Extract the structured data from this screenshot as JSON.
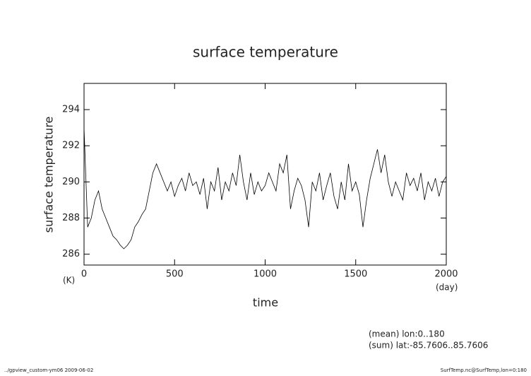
{
  "chart_data": {
    "type": "line",
    "title": "surface temperature",
    "y_label": "surface temperature",
    "y_unit": "(K)",
    "x_label": "time",
    "x_unit": "(day)",
    "notes": [
      "(mean) lon:0..180",
      "(sum) lat:-85.7606..85.7606"
    ],
    "footer_left": "../gpview_custom-ym06  2009-06-02",
    "footer_right": "SurfTemp.nc@SurfTemp,lon=0:180",
    "color": "#000000",
    "x": [
      0,
      20,
      40,
      60,
      80,
      100,
      120,
      140,
      160,
      180,
      200,
      220,
      240,
      260,
      280,
      300,
      320,
      340,
      360,
      380,
      400,
      420,
      440,
      460,
      480,
      500,
      520,
      540,
      560,
      580,
      600,
      620,
      640,
      660,
      680,
      700,
      720,
      740,
      760,
      780,
      800,
      820,
      840,
      860,
      880,
      900,
      920,
      940,
      960,
      980,
      1000,
      1020,
      1040,
      1060,
      1080,
      1100,
      1120,
      1140,
      1160,
      1180,
      1200,
      1220,
      1240,
      1260,
      1280,
      1300,
      1320,
      1340,
      1360,
      1380,
      1400,
      1420,
      1440,
      1460,
      1480,
      1500,
      1520,
      1540,
      1560,
      1580,
      1600,
      1620,
      1640,
      1660,
      1680,
      1700,
      1720,
      1740,
      1760,
      1780,
      1800,
      1820,
      1840,
      1860,
      1880,
      1900,
      1920,
      1940,
      1960,
      1980,
      2000
    ],
    "values": [
      293,
      287.5,
      288,
      289,
      289.5,
      288.5,
      288,
      287.5,
      287,
      286.8,
      286.5,
      286.3,
      286.5,
      286.8,
      287.5,
      287.8,
      288.2,
      288.5,
      289.5,
      290.5,
      291,
      290.5,
      290,
      289.5,
      290,
      289.2,
      289.8,
      290.2,
      289.5,
      290.5,
      289.8,
      290,
      289.3,
      290.2,
      288.5,
      290,
      289.5,
      290.8,
      289,
      290,
      289.5,
      290.5,
      289.8,
      291.5,
      290,
      289,
      290.5,
      289.3,
      290,
      289.5,
      289.8,
      290.5,
      290,
      289.5,
      291,
      290.5,
      291.5,
      288.5,
      289.5,
      290.2,
      289.8,
      289,
      287.5,
      290,
      289.5,
      290.5,
      289,
      289.8,
      290.5,
      289.2,
      288.5,
      290,
      289,
      291,
      289.5,
      290,
      289.3,
      287.5,
      289,
      290.2,
      291,
      291.8,
      290.5,
      291.5,
      290,
      289.2,
      290,
      289.5,
      289,
      290.5,
      289.8,
      290.2,
      289.5,
      290.5,
      289,
      290,
      289.5,
      290.2,
      289.2,
      290,
      290.3
    ],
    "xlim": [
      0,
      2000
    ],
    "ylim": [
      285.4,
      295.45
    ],
    "xticks": [
      0,
      500,
      1000,
      1500,
      2000
    ],
    "yticks": [
      286,
      288,
      290,
      292,
      294
    ]
  }
}
